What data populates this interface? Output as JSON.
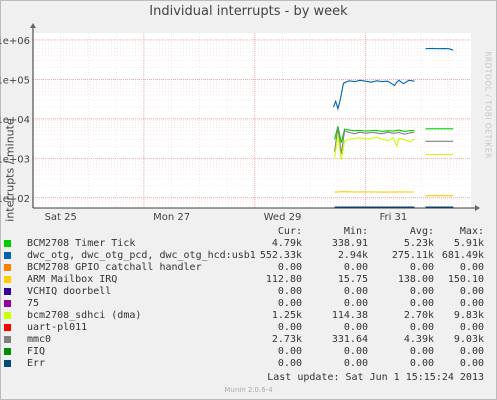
{
  "chart_title": "Individual interrupts - by week",
  "ylabel": "interrupts / minute",
  "watermark": "RRDTOOL / TOBI OETIKER",
  "legend_headers": {
    "cur": "Cur:",
    "min": "Min:",
    "avg": "Avg:",
    "max": "Max:"
  },
  "legend": [
    {
      "name": "BCM2708 Timer Tick",
      "color": "#00cc00",
      "cur": "4.79k",
      "min": "338.91",
      "avg": "5.23k",
      "max": "5.91k"
    },
    {
      "name": "dwc_otg, dwc_otg_pcd, dwc_otg_hcd:usb1",
      "color": "#0066b3",
      "cur": "552.33k",
      "min": "2.94k",
      "avg": "275.11k",
      "max": "681.49k"
    },
    {
      "name": "BCM2708 GPIO catchall handler",
      "color": "#ff8000",
      "cur": "0.00",
      "min": "0.00",
      "avg": "0.00",
      "max": "0.00"
    },
    {
      "name": "ARM Mailbox IRQ",
      "color": "#ffcc00",
      "cur": "112.80",
      "min": "15.75",
      "avg": "138.00",
      "max": "150.10"
    },
    {
      "name": "VCHIQ doorbell",
      "color": "#330099",
      "cur": "0.00",
      "min": "0.00",
      "avg": "0.00",
      "max": "0.00"
    },
    {
      "name": "75",
      "color": "#990099",
      "cur": "0.00",
      "min": "0.00",
      "avg": "0.00",
      "max": "0.00"
    },
    {
      "name": "bcm2708_sdhci (dma)",
      "color": "#ccff00",
      "cur": "1.25k",
      "min": "114.38",
      "avg": "2.70k",
      "max": "9.83k"
    },
    {
      "name": "uart-pl011",
      "color": "#ff0000",
      "cur": "0.00",
      "min": "0.00",
      "avg": "0.00",
      "max": "0.00"
    },
    {
      "name": "mmc0",
      "color": "#808080",
      "cur": "2.73k",
      "min": "331.64",
      "avg": "4.39k",
      "max": "9.03k"
    },
    {
      "name": "FIQ",
      "color": "#008f00",
      "cur": "0.00",
      "min": "0.00",
      "avg": "0.00",
      "max": "0.00"
    },
    {
      "name": "Err",
      "color": "#00487d",
      "cur": "0.00",
      "min": "0.00",
      "avg": "0.00",
      "max": "0.00"
    }
  ],
  "last_update": "Last update:  Sat Jun  1 15:15:24 2013",
  "footer": "Munin 2.0.6-4",
  "chart_data": {
    "type": "line",
    "title": "Individual interrupts - by week",
    "ylabel": "interrupts / minute",
    "yscale": "log",
    "ylim": [
      55,
      1500000
    ],
    "yticks": [
      100,
      1000,
      10000,
      100000,
      1000000
    ],
    "ytick_labels": [
      "1e+02",
      "1e+03",
      "1e+04",
      "1e+05",
      "1e+06"
    ],
    "x_unit": "days",
    "xlim": [
      0,
      7.9
    ],
    "xticks": [
      0,
      2,
      4,
      6
    ],
    "xtick_labels": [
      "Sat 25",
      "Mon 27",
      "Wed 29",
      "Fri 31"
    ],
    "grid": true,
    "series": [
      {
        "name": "dwc_otg, dwc_otg_pcd, dwc_otg_hcd:usb1",
        "color": "#0066b3",
        "segments": [
          {
            "x": [
              5.42,
              5.46,
              5.5,
              5.54,
              5.6,
              5.7,
              5.8,
              5.9,
              6.0,
              6.1,
              6.2,
              6.3,
              6.4,
              6.52,
              6.56,
              6.6,
              6.68,
              6.78,
              6.88
            ],
            "y": [
              20000,
              28000,
              18000,
              30000,
              80000,
              92000,
              88000,
              95000,
              90000,
              85000,
              92000,
              88000,
              90000,
              70000,
              85000,
              95000,
              78000,
              95000,
              90000
            ]
          },
          {
            "x": [
              7.08,
              7.2,
              7.3,
              7.4,
              7.5,
              7.58
            ],
            "y": [
              600000,
              610000,
              600000,
              605000,
              600000,
              550000
            ]
          }
        ]
      },
      {
        "name": "BCM2708 Timer Tick",
        "color": "#00cc00",
        "segments": [
          {
            "x": [
              5.44,
              5.5,
              5.56,
              5.62,
              5.7,
              5.8,
              5.9,
              6.0,
              6.1,
              6.2,
              6.3,
              6.4,
              6.5,
              6.6,
              6.7,
              6.8,
              6.88
            ],
            "y": [
              3000,
              6500,
              2500,
              5500,
              5200,
              5000,
              5100,
              4900,
              5000,
              5100,
              4800,
              5000,
              4900,
              5200,
              4800,
              5000,
              5100
            ]
          },
          {
            "x": [
              7.08,
              7.58
            ],
            "y": [
              5600,
              5600
            ]
          }
        ]
      },
      {
        "name": "mmc0",
        "color": "#808080",
        "segments": [
          {
            "x": [
              5.44,
              5.5,
              5.56,
              5.62,
              5.7,
              5.8,
              5.9,
              6.0,
              6.1,
              6.2,
              6.3,
              6.4,
              6.5,
              6.6,
              6.7,
              6.8,
              6.88
            ],
            "y": [
              1500,
              6000,
              1300,
              5000,
              4500,
              4200,
              4600,
              4300,
              4500,
              4400,
              4200,
              4600,
              4300,
              4500,
              4100,
              4400,
              4600
            ]
          },
          {
            "x": [
              7.08,
              7.58
            ],
            "y": [
              2700,
              2700
            ]
          }
        ]
      },
      {
        "name": "FIQ",
        "color": "#008f00",
        "segments": []
      },
      {
        "name": "bcm2708_sdhci (dma)",
        "color": "#ccff00",
        "segments": [
          {
            "x": [
              5.44,
              5.5,
              5.56,
              5.62,
              5.7,
              5.8,
              5.9,
              6.0,
              6.1,
              6.2,
              6.3,
              6.4,
              6.5,
              6.56,
              6.6,
              6.7,
              6.8,
              6.88
            ],
            "y": [
              1000,
              4000,
              900,
              2800,
              3000,
              3200,
              3300,
              3100,
              3200,
              3400,
              3000,
              2800,
              3300,
              2000,
              3200,
              3000,
              2600,
              3100
            ]
          },
          {
            "x": [
              7.08,
              7.58
            ],
            "y": [
              1250,
              1250
            ]
          }
        ]
      },
      {
        "name": "ARM Mailbox IRQ",
        "color": "#ffcc00",
        "segments": [
          {
            "x": [
              5.44,
              5.6,
              5.8,
              6.0,
              6.2,
              6.4,
              6.6,
              6.88
            ],
            "y": [
              140,
              142,
              140,
              141,
              140,
              139,
              141,
              140
            ]
          },
          {
            "x": [
              7.08,
              7.58
            ],
            "y": [
              113,
              113
            ]
          }
        ]
      },
      {
        "name": "Err",
        "color": "#00487d",
        "segments": [
          {
            "x": [
              5.44,
              6.88
            ],
            "y": [
              58,
              58
            ]
          },
          {
            "x": [
              7.08,
              7.58
            ],
            "y": [
              58,
              58
            ]
          }
        ]
      }
    ]
  }
}
